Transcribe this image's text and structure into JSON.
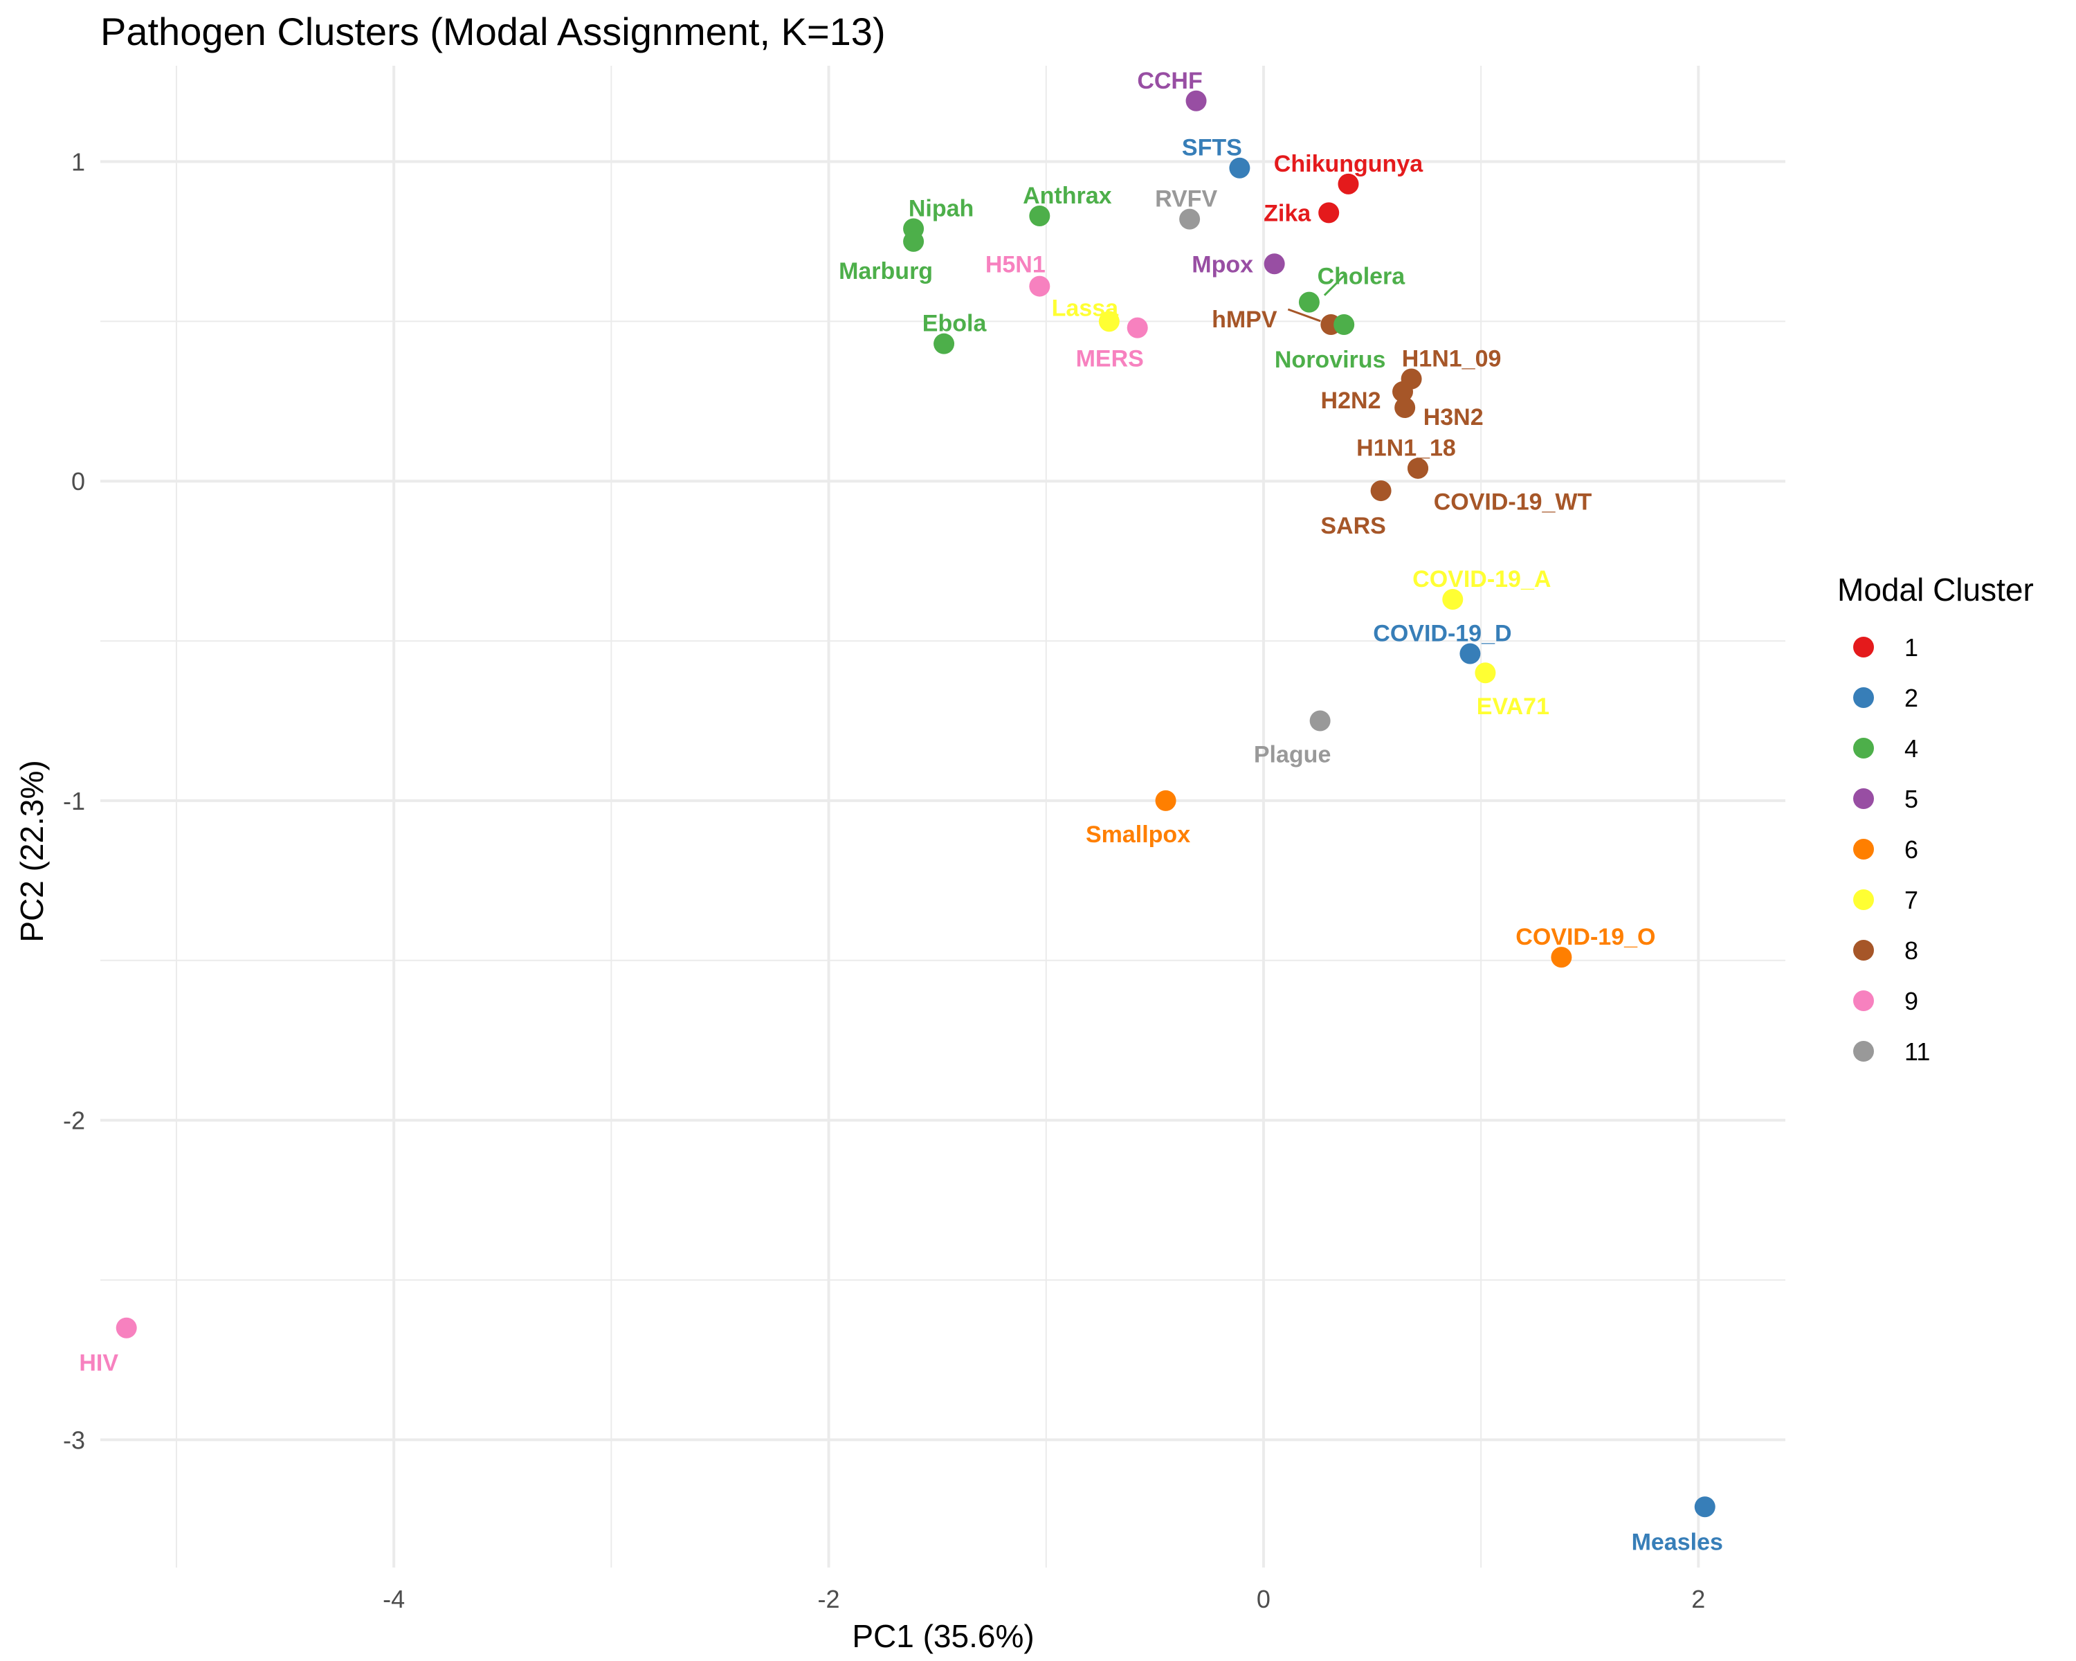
{
  "chart_data": {
    "type": "scatter",
    "title": "Pathogen Clusters (Modal Assignment, K=13)",
    "xlabel": "PC1 (35.6%)",
    "ylabel": "PC2 (22.3%)",
    "xlim": [
      -5.35,
      2.4
    ],
    "ylim": [
      -3.4,
      1.3
    ],
    "x_ticks": [
      -4,
      -2,
      0,
      2
    ],
    "y_ticks": [
      1,
      0,
      -1,
      -2,
      -3
    ],
    "x_tick_labels": [
      "-4",
      "-2",
      "0",
      "2"
    ],
    "y_tick_labels": [
      "1",
      "0",
      "-1",
      "-2",
      "-3"
    ],
    "grid": true,
    "legend": {
      "title": "Modal Cluster",
      "position": "right",
      "entries": [
        {
          "label": "1",
          "color": "#E41A1C"
        },
        {
          "label": "2",
          "color": "#377EB8"
        },
        {
          "label": "4",
          "color": "#4DAF4A"
        },
        {
          "label": "5",
          "color": "#984EA3"
        },
        {
          "label": "6",
          "color": "#FF7F00"
        },
        {
          "label": "7",
          "color": "#FFFF33"
        },
        {
          "label": "8",
          "color": "#A65628"
        },
        {
          "label": "9",
          "color": "#F781BF"
        },
        {
          "label": "11",
          "color": "#999999"
        }
      ]
    },
    "points": [
      {
        "label": "CCHF",
        "x": -0.31,
        "y": 1.19,
        "cluster": "5"
      },
      {
        "label": "SFTS",
        "x": -0.11,
        "y": 0.98,
        "cluster": "2"
      },
      {
        "label": "Chikungunya",
        "x": 0.39,
        "y": 0.93,
        "cluster": "1"
      },
      {
        "label": "Zika",
        "x": 0.3,
        "y": 0.84,
        "cluster": "1"
      },
      {
        "label": "RVFV",
        "x": -0.34,
        "y": 0.82,
        "cluster": "11"
      },
      {
        "label": "Anthrax",
        "x": -1.03,
        "y": 0.83,
        "cluster": "4"
      },
      {
        "label": "Nipah",
        "x": -1.61,
        "y": 0.79,
        "cluster": "4"
      },
      {
        "label": "Marburg",
        "x": -1.61,
        "y": 0.75,
        "cluster": "4"
      },
      {
        "label": "Mpox",
        "x": 0.05,
        "y": 0.68,
        "cluster": "5"
      },
      {
        "label": "H5N1",
        "x": -1.03,
        "y": 0.61,
        "cluster": "9"
      },
      {
        "label": "Cholera",
        "x": 0.21,
        "y": 0.56,
        "cluster": "4"
      },
      {
        "label": "Lassa",
        "x": -0.71,
        "y": 0.5,
        "cluster": "7"
      },
      {
        "label": "hMPV",
        "x": 0.31,
        "y": 0.49,
        "cluster": "8"
      },
      {
        "label": "Norovirus",
        "x": 0.37,
        "y": 0.49,
        "cluster": "4"
      },
      {
        "label": "MERS",
        "x": -0.58,
        "y": 0.48,
        "cluster": "9"
      },
      {
        "label": "Ebola",
        "x": -1.47,
        "y": 0.43,
        "cluster": "4"
      },
      {
        "label": "H1N1_09",
        "x": 0.68,
        "y": 0.32,
        "cluster": "8"
      },
      {
        "label": "H2N2",
        "x": 0.64,
        "y": 0.28,
        "cluster": "8"
      },
      {
        "label": "H3N2",
        "x": 0.65,
        "y": 0.23,
        "cluster": "8"
      },
      {
        "label": "H1N1_18",
        "x": 0.71,
        "y": 0.04,
        "cluster": "8"
      },
      {
        "label": "SARS",
        "x": 0.54,
        "y": -0.03,
        "cluster": "8"
      },
      {
        "label": "COVID-19_WT",
        "x": 0.71,
        "y": 0.04,
        "cluster": "8"
      },
      {
        "label": "COVID-19_A",
        "x": 0.87,
        "y": -0.37,
        "cluster": "7"
      },
      {
        "label": "COVID-19_D",
        "x": 0.95,
        "y": -0.54,
        "cluster": "2"
      },
      {
        "label": "EVA71",
        "x": 1.02,
        "y": -0.6,
        "cluster": "7"
      },
      {
        "label": "Plague",
        "x": 0.26,
        "y": -0.75,
        "cluster": "11"
      },
      {
        "label": "Smallpox",
        "x": -0.45,
        "y": -1.0,
        "cluster": "6"
      },
      {
        "label": "COVID-19_O",
        "x": 1.37,
        "y": -1.49,
        "cluster": "6"
      },
      {
        "label": "HIV",
        "x": -5.23,
        "y": -2.65,
        "cluster": "9"
      },
      {
        "label": "Measles",
        "x": 2.03,
        "y": -3.21,
        "cluster": "2"
      }
    ]
  }
}
